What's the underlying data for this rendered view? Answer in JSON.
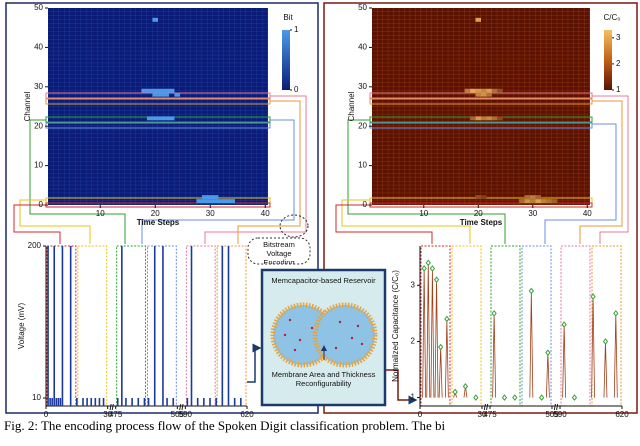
{
  "caption": "Fig. 2: The encoding process flow of the Spoken Digit classification problem. The bi",
  "labels": {
    "encoding": "Bitstream Voltage Encoding",
    "reservoir": "Memcapacitor-based Reservoir",
    "reconfig": "Membrane Area and Thickness Reconfigurability"
  },
  "chart_data": [
    {
      "type": "heatmap",
      "colorbar_label": "Bit",
      "colorbar_lim": [
        0,
        1
      ],
      "colorbar_ticks": [
        0,
        1
      ],
      "x_label": "Time Steps",
      "y_label": "Channel",
      "xlim": [
        0.5,
        40.5
      ],
      "ylim": [
        0,
        50
      ],
      "xticks": [
        10,
        20,
        30,
        40
      ],
      "yticks": [
        0,
        10,
        20,
        30,
        40,
        50
      ],
      "color_low": "#0b1c78",
      "color_high": "#4a9ae8",
      "cells": {
        "x": [
          18,
          19,
          20,
          21,
          22,
          23,
          20,
          21,
          22,
          24,
          19,
          20,
          21,
          22,
          23,
          20,
          28,
          29,
          30,
          31,
          32,
          33,
          34,
          29,
          30,
          31
        ],
        "y": [
          29,
          29,
          29,
          29,
          29,
          29,
          28,
          28,
          28,
          28,
          22,
          22,
          22,
          22,
          22,
          47,
          1,
          1,
          1,
          1,
          1,
          1,
          1,
          2,
          2,
          2
        ],
        "values": [
          1,
          1,
          1,
          1,
          1,
          1,
          1,
          1,
          1,
          1,
          1,
          1,
          1,
          1,
          1,
          1,
          1,
          1,
          1,
          1,
          1,
          1,
          1,
          1,
          1,
          1
        ]
      }
    },
    {
      "type": "heatmap",
      "colorbar_label": "C/C₀",
      "colorbar_lim": [
        1,
        3.3
      ],
      "colorbar_ticks": [
        1,
        2,
        3
      ],
      "x_label": "Time Steps",
      "y_label": "Channel",
      "xlim": [
        0.5,
        40.5
      ],
      "ylim": [
        0,
        50
      ],
      "xticks": [
        10,
        20,
        30,
        40
      ],
      "yticks": [
        0,
        10,
        20,
        30,
        40,
        50
      ],
      "color_low": "#5c1200",
      "color_high": "#f5c060",
      "cells": {
        "x": [
          18,
          19,
          20,
          21,
          22,
          23,
          24,
          20,
          21,
          22,
          19,
          20,
          21,
          22,
          23,
          24,
          20,
          28,
          29,
          30,
          31,
          32,
          33,
          34,
          29,
          30,
          31,
          20,
          21
        ],
        "y": [
          29,
          29,
          29,
          29,
          29,
          29,
          29,
          28,
          28,
          28,
          22,
          22,
          22,
          22,
          22,
          22,
          47,
          1,
          1,
          1,
          1,
          1,
          1,
          1,
          2,
          2,
          2,
          2,
          2
        ],
        "values": [
          2.4,
          3,
          2.8,
          2.6,
          2.9,
          2.2,
          1.8,
          2.5,
          2.7,
          2.3,
          2.1,
          2.8,
          2.4,
          2.6,
          2.2,
          1.7,
          2.9,
          2.2,
          2.7,
          2.4,
          2.9,
          2.5,
          2.3,
          2,
          2.2,
          2.4,
          2.1,
          1.8,
          1.6
        ]
      }
    },
    {
      "type": "spikes",
      "x_label": "Time (s)",
      "y_label": "Voltage (mV)",
      "ylim": [
        0,
        200
      ],
      "yticks": [
        10,
        200
      ],
      "xticks": [
        0,
        30,
        475,
        505,
        590,
        620
      ],
      "color": "#1b3a9b",
      "x": [
        1,
        4,
        8,
        12,
        478,
        494,
        498,
        593,
        608,
        611,
        2,
        3,
        5,
        6,
        7,
        15,
        18,
        20,
        22,
        24,
        26,
        28,
        476,
        480,
        483,
        486,
        489,
        491,
        500,
        503,
        591,
        596,
        599,
        602,
        605,
        614,
        617
      ],
      "values": [
        200,
        200,
        200,
        200,
        200,
        200,
        200,
        200,
        200,
        200,
        10,
        10,
        10,
        10,
        10,
        10,
        10,
        10,
        10,
        10,
        10,
        10,
        10,
        10,
        10,
        10,
        10,
        10,
        10,
        10,
        10,
        10,
        10,
        10,
        10,
        10,
        10
      ]
    },
    {
      "type": "peaks",
      "x_label": "Time (s)",
      "y_label": "Normalized Capacitance (C/C₀)",
      "ylim": [
        0.85,
        3.7
      ],
      "yticks": [
        1,
        2,
        3
      ],
      "xticks": [
        0,
        30,
        475,
        505,
        590,
        620
      ],
      "color": "#a0401a",
      "marker_color": "#3aa03a",
      "x": [
        2,
        4,
        6,
        8,
        10,
        13,
        17,
        22,
        27,
        477,
        482,
        487,
        495,
        500,
        503,
        592,
        597,
        606,
        612,
        617
      ],
      "values": [
        3.3,
        3.4,
        3.3,
        3.1,
        1.9,
        2.4,
        1.1,
        1.2,
        1.0,
        2.5,
        1.0,
        1.0,
        2.9,
        1.0,
        1.8,
        2.3,
        1.0,
        2.8,
        2.0,
        2.5
      ]
    }
  ]
}
